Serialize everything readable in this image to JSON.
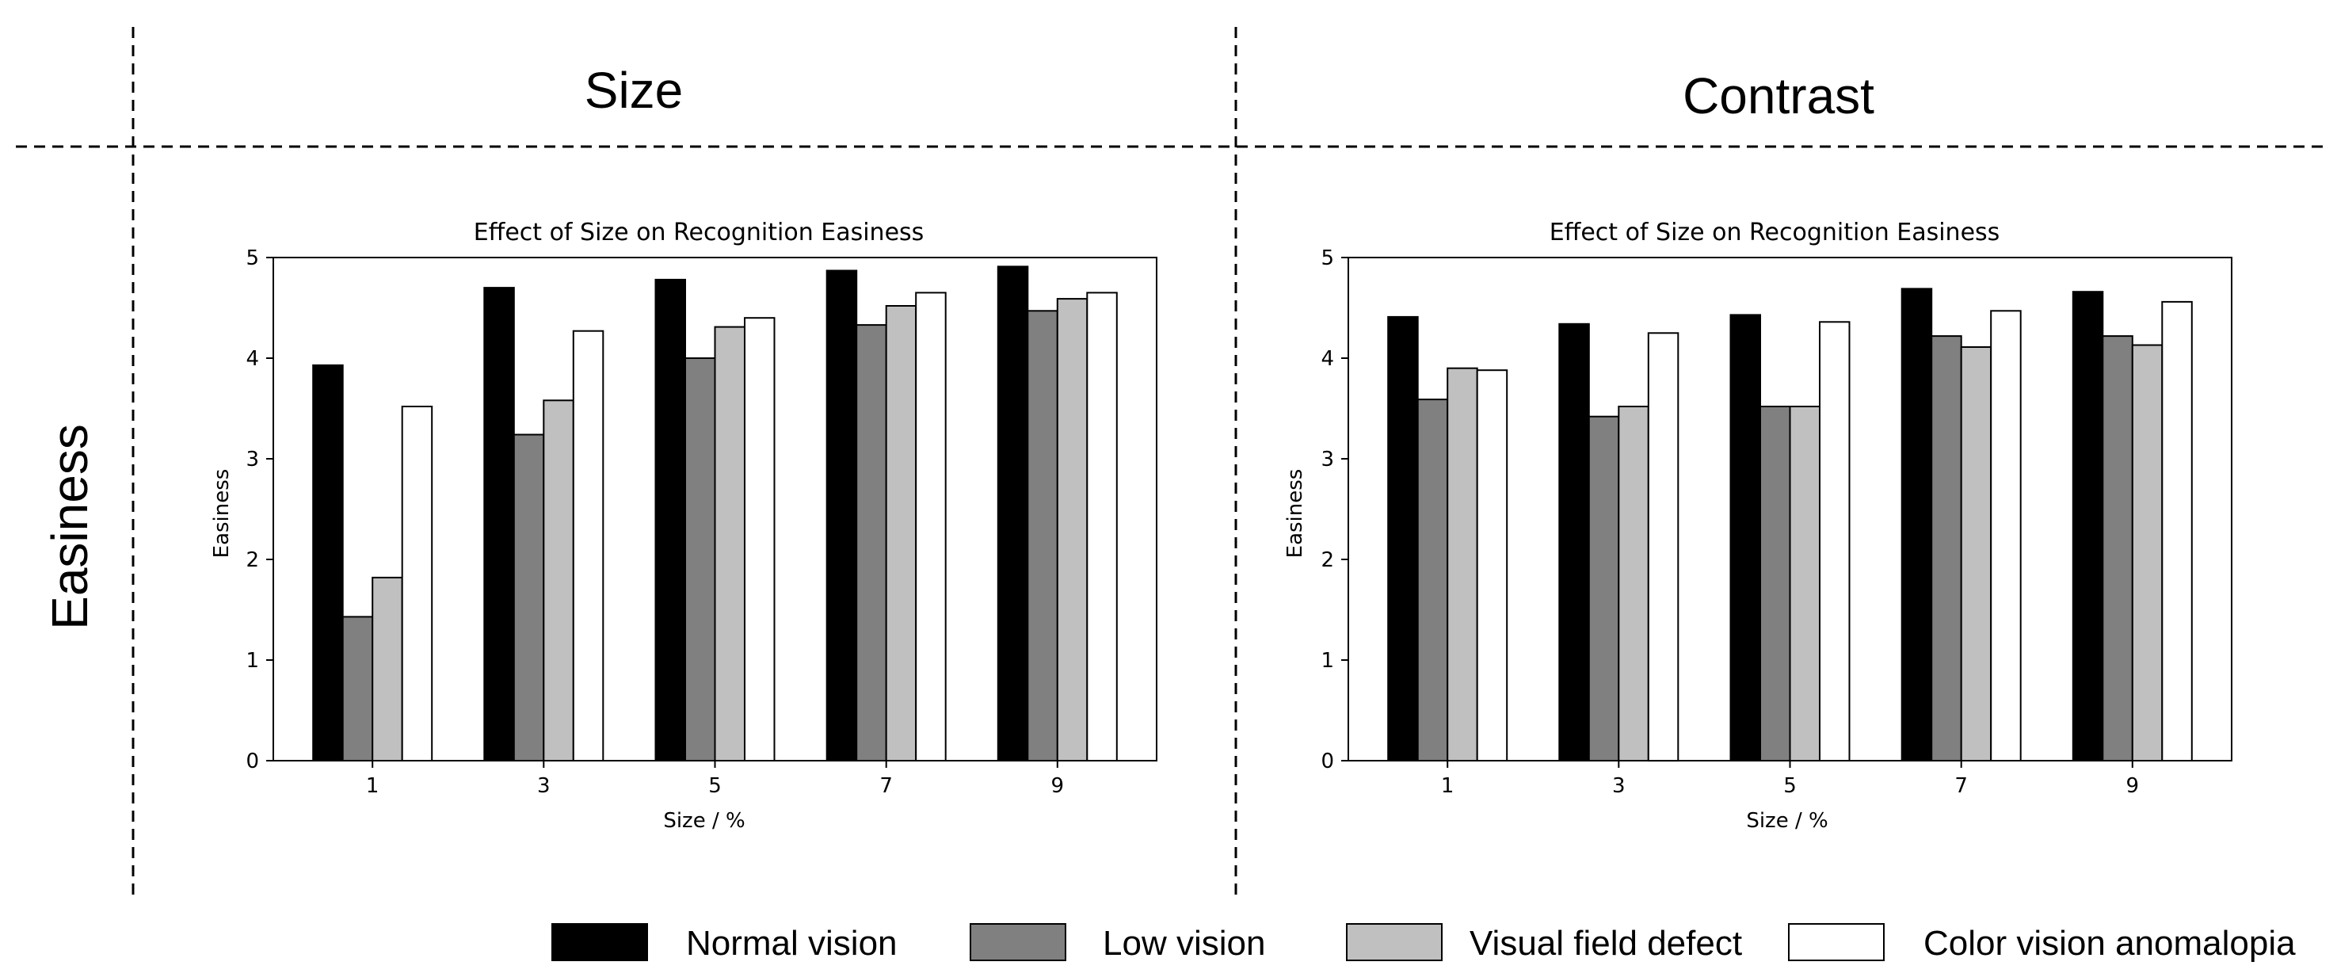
{
  "figure": {
    "row_label": "Easiness",
    "column_headers": [
      "Size",
      "Contrast"
    ]
  },
  "colors": {
    "series": [
      "#000000",
      "#808080",
      "#c0c0c0",
      "#ffffff"
    ]
  },
  "legend": {
    "items": [
      "Normal vision",
      "Low vision",
      "Visual field defect",
      "Color vision anomalopia"
    ]
  },
  "chart_data": [
    {
      "type": "bar",
      "title": "Effect of Size on Recognition Easiness",
      "xlabel": "Size / %",
      "ylabel": "Easiness",
      "ylim": [
        0,
        5
      ],
      "yticks": [
        "0",
        "1",
        "2",
        "3",
        "4",
        "5"
      ],
      "categories": [
        "1",
        "3",
        "5",
        "7",
        "9"
      ],
      "series": [
        {
          "name": "Normal vision",
          "values": [
            3.93,
            4.7,
            4.78,
            4.87,
            4.91
          ]
        },
        {
          "name": "Low vision",
          "values": [
            1.43,
            3.24,
            4.0,
            4.33,
            4.47
          ]
        },
        {
          "name": "Visual field defect",
          "values": [
            1.82,
            3.58,
            4.31,
            4.52,
            4.59
          ]
        },
        {
          "name": "Color vision anomalopia",
          "values": [
            3.52,
            4.27,
            4.4,
            4.65,
            4.65
          ]
        }
      ]
    },
    {
      "type": "bar",
      "title": "Effect of Size on Recognition Easiness",
      "xlabel": "Size / %",
      "ylabel": "Easiness",
      "ylim": [
        0,
        5
      ],
      "yticks": [
        "0",
        "1",
        "2",
        "3",
        "4",
        "5"
      ],
      "categories": [
        "1",
        "3",
        "5",
        "7",
        "9"
      ],
      "series": [
        {
          "name": "Normal vision",
          "values": [
            4.41,
            4.34,
            4.43,
            4.69,
            4.66
          ]
        },
        {
          "name": "Low vision",
          "values": [
            3.59,
            3.42,
            3.52,
            4.22,
            4.22
          ]
        },
        {
          "name": "Visual field defect",
          "values": [
            3.9,
            3.52,
            3.52,
            4.11,
            4.13
          ]
        },
        {
          "name": "Color vision anomalopia",
          "values": [
            3.88,
            4.25,
            4.36,
            4.47,
            4.56
          ]
        }
      ]
    }
  ]
}
